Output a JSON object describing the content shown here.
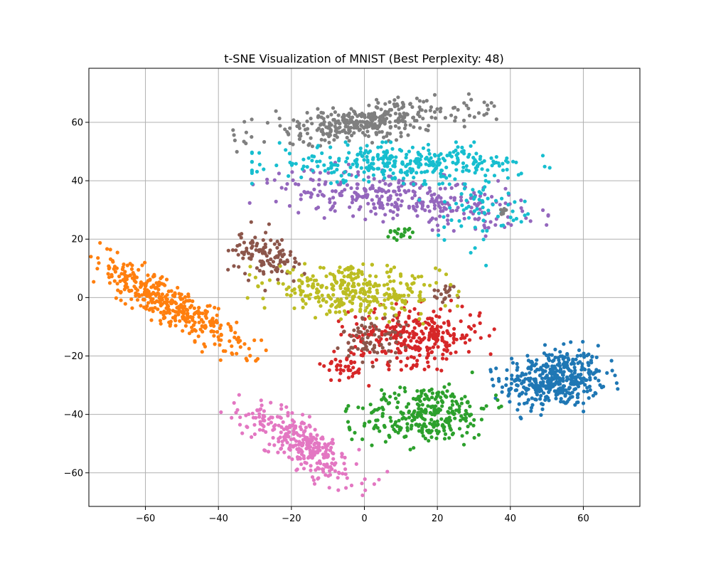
{
  "chart_data": {
    "type": "scatter",
    "title": "t-SNE Visualization of MNIST (Best Perplexity: 48)",
    "xlabel": "",
    "ylabel": "",
    "xlim": [
      -75.5,
      75.5
    ],
    "ylim": [
      -71.5,
      78.5
    ],
    "xticks": [
      -60,
      -40,
      -20,
      0,
      20,
      40,
      60
    ],
    "yticks": [
      -60,
      -40,
      -20,
      0,
      20,
      40,
      60
    ],
    "grid": true,
    "legend": "none",
    "clusters": [
      {
        "color": "#1f77b4",
        "center": [
          52,
          -28
        ],
        "spread": [
          7,
          5
        ],
        "rotation": 8,
        "count": 420
      },
      {
        "color": "#ff7f0e",
        "center": [
          -54,
          -2
        ],
        "spread": [
          13,
          3
        ],
        "rotation": -38,
        "count": 400
      },
      {
        "color": "#2ca02c",
        "center": [
          17,
          -40
        ],
        "spread": [
          9,
          5
        ],
        "rotation": 10,
        "count": 300
      },
      {
        "color": "#2ca02c",
        "center": [
          10,
          22
        ],
        "spread": [
          2,
          1.2
        ],
        "rotation": 0,
        "count": 18
      },
      {
        "color": "#d62728",
        "center": [
          14,
          -13
        ],
        "spread": [
          9,
          5
        ],
        "rotation": 0,
        "count": 300
      },
      {
        "color": "#d62728",
        "center": [
          -5,
          -23
        ],
        "spread": [
          3,
          3
        ],
        "rotation": 0,
        "count": 40
      },
      {
        "color": "#9467bd",
        "center": [
          10,
          34
        ],
        "spread": [
          17,
          4
        ],
        "rotation": -8,
        "count": 330
      },
      {
        "color": "#8c564b",
        "center": [
          -27,
          14
        ],
        "spread": [
          5,
          4
        ],
        "rotation": -35,
        "count": 120
      },
      {
        "color": "#8c564b",
        "center": [
          2,
          -14
        ],
        "spread": [
          4,
          4
        ],
        "rotation": 0,
        "count": 70
      },
      {
        "color": "#8c564b",
        "center": [
          23,
          2
        ],
        "spread": [
          2,
          1.5
        ],
        "rotation": 0,
        "count": 20
      },
      {
        "color": "#e377c2",
        "center": [
          -17,
          -50
        ],
        "spread": [
          10,
          3.5
        ],
        "rotation": -40,
        "count": 300
      },
      {
        "color": "#7f7f7f",
        "center": [
          0,
          60
        ],
        "spread": [
          15,
          3
        ],
        "rotation": 8,
        "count": 360
      },
      {
        "color": "#bcbd22",
        "center": [
          -3,
          2
        ],
        "spread": [
          12,
          4
        ],
        "rotation": -4,
        "count": 330
      },
      {
        "color": "#17becf",
        "center": [
          10,
          46
        ],
        "spread": [
          17,
          3
        ],
        "rotation": 0,
        "count": 320
      },
      {
        "color": "#17becf",
        "center": [
          32,
          30
        ],
        "spread": [
          6,
          6
        ],
        "rotation": -45,
        "count": 70
      },
      {
        "color": "#7f7f7f",
        "center": [
          38,
          29
        ],
        "spread": [
          0.6,
          1
        ],
        "rotation": 0,
        "count": 8
      }
    ]
  }
}
